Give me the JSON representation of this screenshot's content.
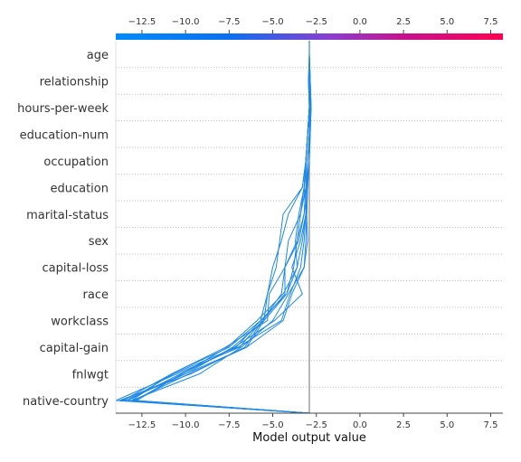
{
  "chart_data": {
    "type": "line",
    "title": "",
    "xlabel": "Model output value",
    "ylabel": "",
    "xlim": [
      -14.0,
      8.2
    ],
    "xticks": [
      -12.5,
      -10.0,
      -7.5,
      -5.0,
      -2.5,
      0.0,
      2.5,
      5.0,
      7.5
    ],
    "xtick_labels": [
      "−12.5",
      "−10.0",
      "−7.5",
      "−5.0",
      "−2.5",
      "0.0",
      "2.5",
      "5.0",
      "7.5"
    ],
    "base_value": -2.9,
    "grid": "dotted horizontal per feature",
    "colorbar": {
      "position": "top",
      "colors": [
        "#008bfb",
        "#8a3fd1",
        "#ff0052"
      ]
    },
    "features": [
      "age",
      "relationship",
      "hours-per-week",
      "education-num",
      "occupation",
      "education",
      "marital-status",
      "sex",
      "capital-loss",
      "race",
      "workclass",
      "capital-gain",
      "fnlwgt",
      "native-country"
    ],
    "line_color": "#1e88e5",
    "series": [
      {
        "values": [
          -2.9,
          -2.85,
          -2.8,
          -2.85,
          -2.9,
          -3.0,
          -3.05,
          -3.0,
          -3.2,
          -3.9,
          -4.4,
          -6.5,
          -9.8,
          -13.0
        ]
      },
      {
        "values": [
          -2.9,
          -2.85,
          -2.8,
          -2.85,
          -2.9,
          -3.0,
          -3.1,
          -3.2,
          -3.4,
          -4.0,
          -4.5,
          -7.0,
          -10.3,
          -13.3
        ]
      },
      {
        "values": [
          -2.9,
          -2.9,
          -2.85,
          -2.9,
          -3.0,
          -3.05,
          -3.1,
          -3.3,
          -3.6,
          -4.2,
          -5.5,
          -7.3,
          -10.0,
          -13.5
        ]
      },
      {
        "values": [
          -2.9,
          -2.85,
          -2.8,
          -2.9,
          -3.0,
          -3.1,
          -3.2,
          -3.5,
          -4.3,
          -5.2,
          -5.3,
          -7.7,
          -10.8,
          -13.6
        ]
      },
      {
        "values": [
          -2.9,
          -2.9,
          -2.9,
          -3.0,
          -3.1,
          -3.1,
          -3.2,
          -3.6,
          -4.3,
          -4.3,
          -5.6,
          -6.6,
          -9.7,
          -13.8
        ]
      },
      {
        "values": [
          -2.9,
          -2.95,
          -2.9,
          -3.0,
          -3.1,
          -3.1,
          -3.4,
          -4.1,
          -4.3,
          -4.5,
          -5.6,
          -6.9,
          -10.5,
          -14.0
        ]
      },
      {
        "values": [
          -2.9,
          -2.9,
          -2.9,
          -3.0,
          -3.1,
          -3.2,
          -3.4,
          -3.6,
          -3.8,
          -4.2,
          -5.7,
          -7.1,
          -10.7,
          -13.3
        ]
      },
      {
        "values": [
          -2.9,
          -2.85,
          -2.9,
          -3.0,
          -3.1,
          -3.3,
          -4.1,
          -4.5,
          -5.0,
          -5.3,
          -5.5,
          -6.5,
          -10.0,
          -13.7
        ]
      },
      {
        "values": [
          -2.9,
          -2.95,
          -2.9,
          -3.0,
          -3.1,
          -3.3,
          -4.4,
          -4.6,
          -4.8,
          -5.3,
          -5.7,
          -7.5,
          -10.8,
          -13.1
        ]
      },
      {
        "values": [
          -2.9,
          -2.9,
          -2.9,
          -3.0,
          -3.1,
          -3.2,
          -3.1,
          -3.4,
          -3.9,
          -3.3,
          -4.9,
          -7.2,
          -10.2,
          -12.8
        ]
      },
      {
        "values": [
          -2.9,
          -2.9,
          -2.9,
          -3.0,
          -3.1,
          -3.2,
          -3.5,
          -3.7,
          -3.6,
          -4.4,
          -5.9,
          -7.6,
          -10.2,
          -12.9
        ]
      },
      {
        "values": [
          -2.9,
          -2.9,
          -2.85,
          -2.9,
          -3.0,
          -3.0,
          -3.05,
          -3.1,
          -3.2,
          -4.1,
          -5.0,
          -6.8,
          -9.2,
          -13.1
        ]
      }
    ]
  }
}
